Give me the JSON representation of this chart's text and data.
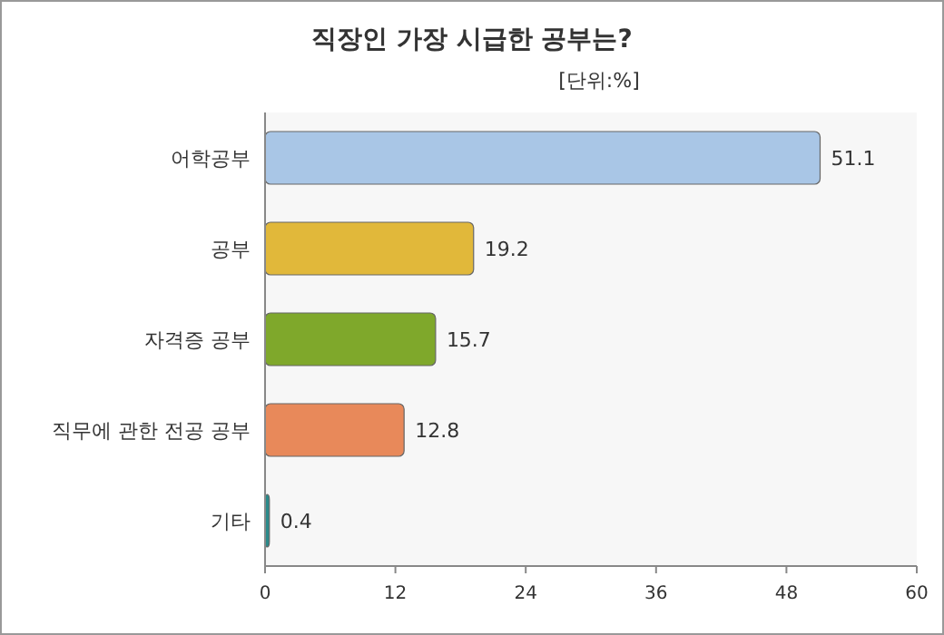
{
  "chart_data": {
    "type": "bar",
    "orientation": "horizontal",
    "title": "직장인 가장 시급한 공부는?",
    "subtitle": "[단위:%]",
    "categories": [
      "어학공부",
      "공부",
      "자격증 공부",
      "직무에 관한 전공 공부",
      "기타"
    ],
    "values": [
      51.1,
      19.2,
      15.7,
      12.8,
      0.4
    ],
    "colors": [
      "#a9c6e6",
      "#e1b83a",
      "#7fa82b",
      "#e8895a",
      "#2a8a8a"
    ],
    "xlim": [
      0,
      60
    ],
    "xticks": [
      0,
      12,
      24,
      36,
      48,
      60
    ],
    "data_labels": true
  }
}
